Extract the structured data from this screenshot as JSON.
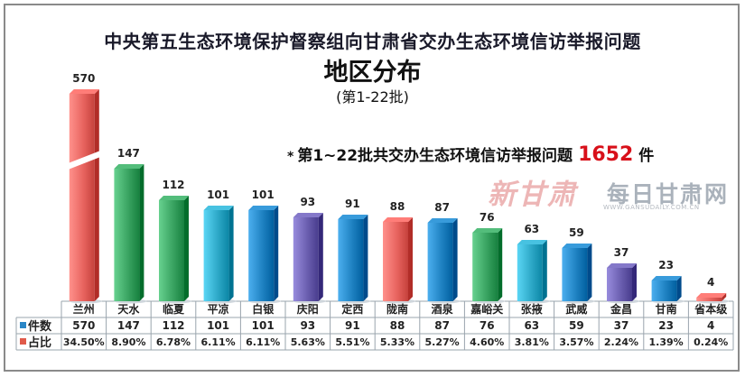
{
  "title_line1": "中央第五生态环境保护督察组向甘肃省交办生态环境信访举报问题",
  "title_line2": "地区分布",
  "title_line3": "(第1-22批)",
  "annotation": {
    "bullet": "*",
    "prefix": "第1~22批共交办生态环境信访举报问题",
    "total": "1652",
    "unit": "件"
  },
  "watermark": {
    "brand": "新甘肃",
    "site": "每日甘肃网",
    "url": "WWW.GANSUDAILY.COM.CN"
  },
  "chart_data": {
    "type": "bar",
    "categories": [
      "兰州",
      "天水",
      "临夏",
      "平凉",
      "白银",
      "庆阳",
      "定西",
      "陇南",
      "酒泉",
      "嘉峪关",
      "张掖",
      "武威",
      "金昌",
      "甘南",
      "省本级"
    ],
    "series": [
      {
        "name": "件数",
        "values": [
          570,
          147,
          112,
          101,
          101,
          93,
          91,
          88,
          87,
          76,
          63,
          59,
          37,
          23,
          4
        ]
      },
      {
        "name": "占比",
        "values": [
          "34.50%",
          "8.90%",
          "6.78%",
          "6.11%",
          "6.11%",
          "5.63%",
          "5.51%",
          "5.33%",
          "5.27%",
          "4.60%",
          "3.81%",
          "3.57%",
          "2.24%",
          "1.39%",
          "0.24%"
        ]
      }
    ],
    "y_axis_break": true,
    "legend": "table-left",
    "colors": {
      "red": "#e8645f",
      "green": "#3aa462",
      "cyan": "#2ea9c8",
      "blue": "#1f82c2",
      "purple": "#6b5fb0",
      "legend_count": "#2a86c6",
      "legend_ratio": "#e05a4a"
    },
    "bar_colors": [
      "red",
      "green",
      "green",
      "cyan",
      "blue",
      "purple",
      "blue",
      "red",
      "blue",
      "green",
      "cyan",
      "blue",
      "purple",
      "blue",
      "red"
    ]
  }
}
